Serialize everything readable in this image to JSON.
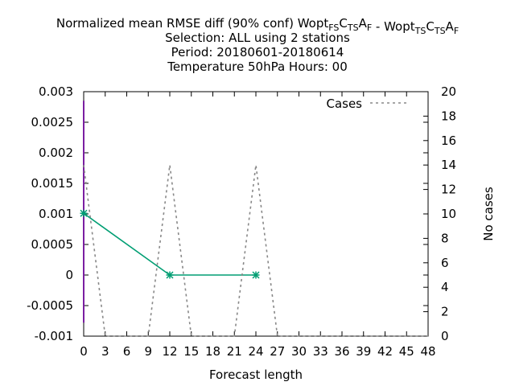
{
  "chart_data": {
    "type": "line",
    "title_lines": [
      "Normalized mean RMSE diff (90% conf) Wopt",
      "Selection: ALL using     2 stations",
      "Period: 20180601-20180614",
      "Temperature 50hPa   Hours:  00"
    ],
    "title_exp_a": {
      "base": "Wopt",
      "parts": [
        [
          "FS",
          "sub"
        ],
        [
          "C",
          ""
        ],
        [
          "TS",
          "sub"
        ],
        [
          "A",
          ""
        ],
        [
          "F",
          "sub"
        ]
      ]
    },
    "title_exp_b": {
      "base": "Wopt",
      "parts": [
        [
          "TS",
          "sub"
        ],
        [
          "C",
          ""
        ],
        [
          "TS",
          "sub"
        ],
        [
          "A",
          ""
        ],
        [
          "F",
          "sub"
        ]
      ]
    },
    "title_sep": " - ",
    "xlabel": "Forecast length",
    "ylabel_right": "No cases",
    "xlim": [
      0,
      48
    ],
    "ylim": [
      -0.001,
      0.003
    ],
    "y2lim": [
      0,
      20
    ],
    "x_ticks": [
      "0",
      "3",
      "6",
      "9",
      "12",
      "15",
      "18",
      "21",
      "24",
      "27",
      "30",
      "33",
      "36",
      "39",
      "42",
      "45",
      "48"
    ],
    "y_ticks": [
      "-0.001",
      "-0.0005",
      "0",
      "0.0005",
      "0.001",
      "0.0015",
      "0.002",
      "0.0025",
      "0.003"
    ],
    "y2_ticks": [
      "0",
      "2",
      "4",
      "6",
      "8",
      "10",
      "12",
      "14",
      "16",
      "18",
      "20"
    ],
    "legend": {
      "label": "Cases",
      "placement": "top-right"
    },
    "series": [
      {
        "kind": "diff",
        "color": "#009e73",
        "x": [
          0,
          12,
          24
        ],
        "y": [
          0.00101,
          0.0,
          0.0
        ]
      },
      {
        "kind": "cases",
        "name": "Cases",
        "color": "#888888",
        "x": [
          0,
          3,
          9,
          12,
          15,
          21,
          24,
          27,
          48
        ],
        "y2": [
          14,
          0,
          0,
          14,
          0,
          0,
          14,
          0,
          0
        ]
      }
    ],
    "conf_interval": {
      "x": 0,
      "low": -0.00078,
      "high": 0.00285,
      "color": "#7b1fa2"
    }
  }
}
